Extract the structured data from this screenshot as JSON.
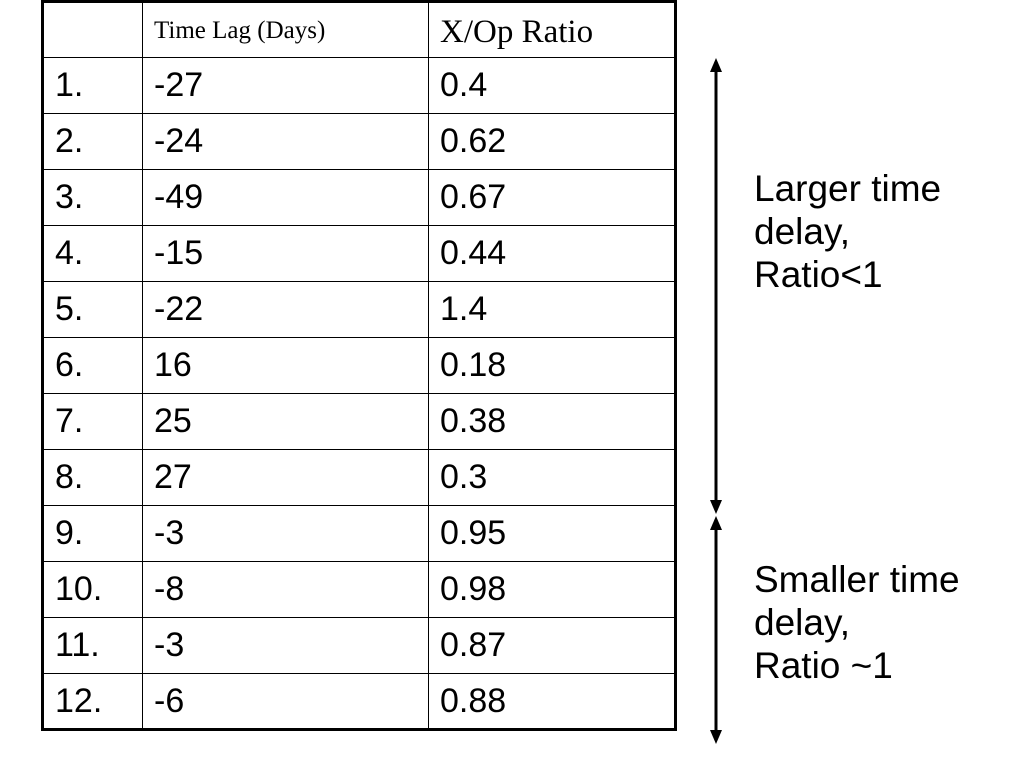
{
  "table": {
    "headers": [
      "",
      "Time Lag (Days)",
      "X/Op Ratio"
    ],
    "rows": [
      {
        "index": "1.",
        "lag": "-27",
        "ratio": "0.4"
      },
      {
        "index": "2.",
        "lag": "-24",
        "ratio": "0.62"
      },
      {
        "index": "3.",
        "lag": "-49",
        "ratio": "0.67"
      },
      {
        "index": "4.",
        "lag": "-15",
        "ratio": "0.44"
      },
      {
        "index": "5.",
        "lag": "-22",
        "ratio": "1.4"
      },
      {
        "index": "6.",
        "lag": "16",
        "ratio": "0.18"
      },
      {
        "index": "7.",
        "lag": "25",
        "ratio": "0.38"
      },
      {
        "index": "8.",
        "lag": "27",
        "ratio": "0.3"
      },
      {
        "index": "9.",
        "lag": "-3",
        "ratio": "0.95"
      },
      {
        "index": "10.",
        "lag": "-8",
        "ratio": "0.98"
      },
      {
        "index": "11.",
        "lag": "-3",
        "ratio": "0.87"
      },
      {
        "index": "12.",
        "lag": "-6",
        "ratio": "0.88"
      }
    ]
  },
  "annotations": {
    "larger": [
      "Larger time",
      "delay,",
      "Ratio<1"
    ],
    "smaller": [
      "Smaller time",
      "delay,",
      "Ratio ~1"
    ]
  }
}
